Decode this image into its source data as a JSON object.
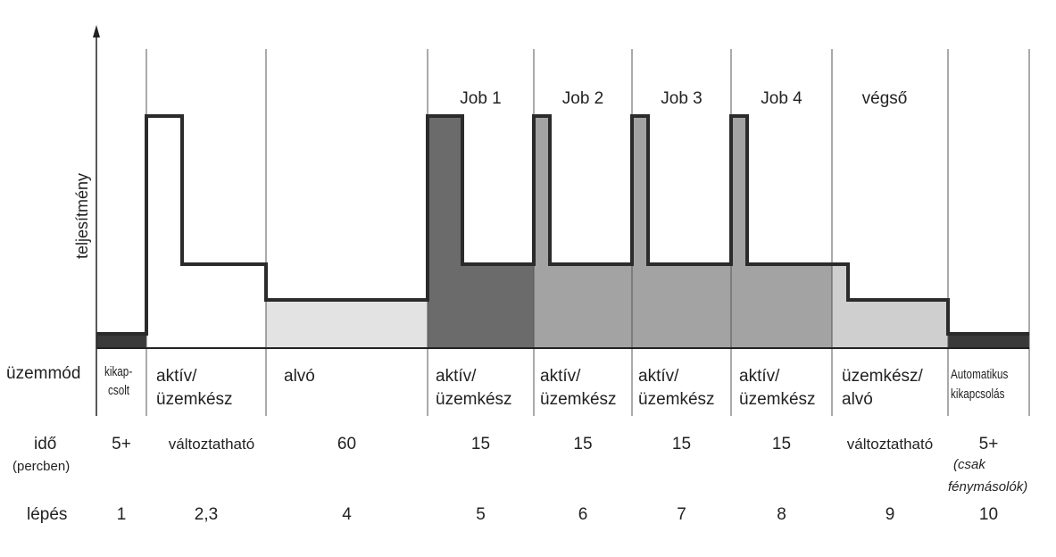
{
  "y_axis_label": "teljesítmény",
  "row_labels": {
    "mode": "üzemmód",
    "time": "idő",
    "time_unit": "(percben)",
    "step": "lépés"
  },
  "jobs": [
    "Job 1",
    "Job 2",
    "Job 3",
    "Job 4",
    "végső"
  ],
  "columns": [
    {
      "mode": [
        "kikap-",
        "csolt"
      ],
      "time": "5+",
      "step": "1"
    },
    {
      "mode": [
        "aktív/",
        "üzemkész"
      ],
      "time": "változtatható",
      "step": "2,3"
    },
    {
      "mode": [
        "alvó"
      ],
      "time": "60",
      "step": "4"
    },
    {
      "mode": [
        "aktív/",
        "üzemkész"
      ],
      "time": "15",
      "step": "5"
    },
    {
      "mode": [
        "aktív/",
        "üzemkész"
      ],
      "time": "15",
      "step": "6"
    },
    {
      "mode": [
        "aktív/",
        "üzemkész"
      ],
      "time": "15",
      "step": "7"
    },
    {
      "mode": [
        "aktív/",
        "üzemkész"
      ],
      "time": "15",
      "step": "8"
    },
    {
      "mode": [
        "üzemkész/",
        "alvó"
      ],
      "time": "változtatható",
      "step": "9"
    },
    {
      "mode": [
        "Automatikus",
        "kikapcsolás"
      ],
      "time": "5+",
      "time_note": [
        "(csak",
        "fénymásolók)"
      ],
      "step": "10"
    }
  ],
  "power_levels": {
    "off": "lowest",
    "sleep": "low",
    "ready": "medium",
    "active": "peak"
  },
  "colors": {
    "line": "#2b2b2b",
    "job1_fill": "#6b6b6b",
    "jobs_fill": "#a3a3a3",
    "sleep_fill": "#e3e3e3",
    "final_fill": "#cfcfcf",
    "grid": "#555555"
  }
}
